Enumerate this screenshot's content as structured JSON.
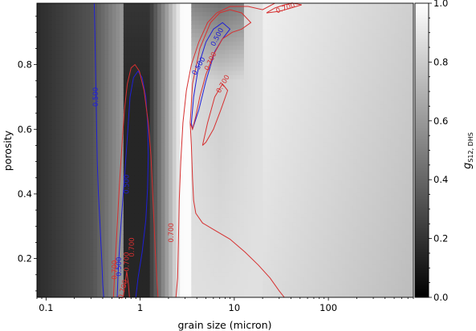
{
  "chart_data": {
    "type": "heatmap",
    "title": "",
    "xlabel": "grain size (micron)",
    "ylabel": "porosity",
    "xscale": "log",
    "xlim": [
      0.08,
      800
    ],
    "ylim": [
      0.08,
      0.99
    ],
    "x_ticks": [
      {
        "value": 0.1,
        "label": "0.1"
      },
      {
        "value": 1,
        "label": "1"
      },
      {
        "value": 10,
        "label": "10"
      },
      {
        "value": 100,
        "label": "100"
      }
    ],
    "y_ticks": [
      {
        "value": 0.2,
        "label": "0.2"
      },
      {
        "value": 0.4,
        "label": "0.4"
      },
      {
        "value": 0.6,
        "label": "0.6"
      },
      {
        "value": 0.8,
        "label": "0.8"
      }
    ],
    "colorbar": {
      "label_main": "g",
      "label_sub": "S12, DHS",
      "range": [
        0,
        1
      ],
      "colormap": "grays",
      "ticks": [
        {
          "value": 0.0,
          "label": "0.0"
        },
        {
          "value": 0.2,
          "label": "0.2"
        },
        {
          "value": 0.4,
          "label": "0.4"
        },
        {
          "value": 0.6,
          "label": "0.6"
        },
        {
          "value": 0.8,
          "label": "0.8"
        },
        {
          "value": 1.0,
          "label": "1.0"
        }
      ]
    },
    "contours": [
      {
        "level": 0.5,
        "label": "0.500",
        "color": "#1f1fd6",
        "paths": [
          [
            [
              0.325,
              0.99
            ],
            [
              0.33,
              0.9
            ],
            [
              0.335,
              0.8
            ],
            [
              0.34,
              0.7
            ],
            [
              0.345,
              0.6
            ],
            [
              0.35,
              0.5
            ],
            [
              0.36,
              0.4
            ],
            [
              0.375,
              0.3
            ],
            [
              0.39,
              0.2
            ],
            [
              0.4,
              0.12
            ],
            [
              0.41,
              0.08
            ]
          ],
          [
            [
              0.9,
              0.08
            ],
            [
              0.95,
              0.14
            ],
            [
              1.05,
              0.22
            ],
            [
              1.15,
              0.32
            ],
            [
              1.2,
              0.42
            ],
            [
              1.22,
              0.52
            ],
            [
              1.2,
              0.62
            ],
            [
              1.15,
              0.7
            ],
            [
              1.05,
              0.76
            ],
            [
              0.95,
              0.78
            ],
            [
              0.85,
              0.76
            ],
            [
              0.78,
              0.7
            ],
            [
              0.74,
              0.6
            ],
            [
              0.7,
              0.5
            ],
            [
              0.66,
              0.4
            ],
            [
              0.63,
              0.32
            ],
            [
              0.6,
              0.22
            ],
            [
              0.58,
              0.14
            ],
            [
              0.57,
              0.08
            ]
          ],
          [
            [
              3.5,
              0.62
            ],
            [
              3.7,
              0.7
            ],
            [
              4.2,
              0.8
            ],
            [
              5,
              0.87
            ],
            [
              6,
              0.91
            ],
            [
              7.5,
              0.93
            ],
            [
              9,
              0.91
            ],
            [
              7.5,
              0.88
            ],
            [
              6.2,
              0.84
            ],
            [
              5,
              0.75
            ],
            [
              4.2,
              0.66
            ],
            [
              3.6,
              0.6
            ],
            [
              3.5,
              0.62
            ]
          ]
        ],
        "labels": [
          {
            "x": 0.34,
            "y": 0.7,
            "rotate": -90
          },
          {
            "x": 0.72,
            "y": 0.43,
            "rotate": -90
          },
          {
            "x": 0.6,
            "y": 0.175,
            "rotate": -90
          },
          {
            "x": 4.2,
            "y": 0.795,
            "rotate": -60
          },
          {
            "x": 6.6,
            "y": 0.885,
            "rotate": -62
          }
        ]
      },
      {
        "level": 0.7,
        "label": "0.700",
        "color": "#d63030",
        "paths": [
          [
            [
              0.52,
              0.08
            ],
            [
              0.54,
              0.17
            ],
            [
              0.57,
              0.3
            ],
            [
              0.6,
              0.42
            ],
            [
              0.64,
              0.55
            ],
            [
              0.68,
              0.66
            ],
            [
              0.73,
              0.74
            ],
            [
              0.8,
              0.79
            ],
            [
              0.88,
              0.8
            ],
            [
              0.98,
              0.78
            ],
            [
              1.1,
              0.72
            ],
            [
              1.22,
              0.62
            ],
            [
              1.3,
              0.52
            ],
            [
              1.35,
              0.42
            ],
            [
              1.4,
              0.32
            ],
            [
              1.45,
              0.22
            ],
            [
              1.5,
              0.14
            ],
            [
              1.55,
              0.08
            ]
          ],
          [
            [
              2.4,
              0.08
            ],
            [
              2.5,
              0.14
            ],
            [
              2.55,
              0.25
            ],
            [
              2.6,
              0.38
            ],
            [
              2.7,
              0.5
            ],
            [
              2.85,
              0.62
            ],
            [
              3.1,
              0.72
            ],
            [
              3.5,
              0.8
            ],
            [
              4.2,
              0.87
            ],
            [
              5.2,
              0.93
            ],
            [
              6.5,
              0.96
            ],
            [
              9,
              0.98
            ],
            [
              14,
              0.98
            ],
            [
              20,
              0.97
            ],
            [
              27,
              0.99
            ]
          ],
          [
            [
              3.4,
              0.62
            ],
            [
              3.5,
              0.55
            ],
            [
              3.6,
              0.45
            ],
            [
              3.7,
              0.38
            ],
            [
              3.9,
              0.34
            ],
            [
              4.6,
              0.31
            ],
            [
              6,
              0.29
            ],
            [
              9,
              0.26
            ],
            [
              13,
              0.22
            ],
            [
              18,
              0.18
            ],
            [
              24,
              0.14
            ],
            [
              30,
              0.1
            ],
            [
              34,
              0.08
            ]
          ],
          [
            [
              3.4,
              0.62
            ],
            [
              3.6,
              0.74
            ],
            [
              4.3,
              0.85
            ],
            [
              5.6,
              0.93
            ],
            [
              7,
              0.96
            ],
            [
              9,
              0.97
            ],
            [
              12,
              0.96
            ],
            [
              15,
              0.93
            ],
            [
              12,
              0.91
            ],
            [
              9.5,
              0.9
            ],
            [
              7.5,
              0.88
            ],
            [
              6,
              0.83
            ],
            [
              5,
              0.77
            ],
            [
              4.3,
              0.7
            ],
            [
              3.9,
              0.64
            ],
            [
              3.6,
              0.6
            ],
            [
              3.4,
              0.62
            ]
          ],
          [
            [
              4.6,
              0.55
            ],
            [
              5.2,
              0.62
            ],
            [
              6.2,
              0.7
            ],
            [
              7.5,
              0.74
            ],
            [
              8.5,
              0.72
            ],
            [
              7.2,
              0.66
            ],
            [
              6,
              0.6
            ],
            [
              5,
              0.56
            ],
            [
              4.6,
              0.55
            ]
          ],
          [
            [
              22,
              0.96
            ],
            [
              27,
              0.975
            ],
            [
              34,
              0.985
            ],
            [
              42,
              0.99
            ],
            [
              52,
              0.985
            ],
            [
              40,
              0.975
            ],
            [
              30,
              0.965
            ],
            [
              22,
              0.96
            ]
          ],
          [
            [
              0.66,
              0.08
            ],
            [
              0.69,
              0.12
            ],
            [
              0.72,
              0.16
            ],
            [
              0.75,
              0.12
            ],
            [
              0.77,
              0.08
            ]
          ]
        ],
        "labels": [
          {
            "x": 0.54,
            "y": 0.165,
            "rotate": -90
          },
          {
            "x": 0.72,
            "y": 0.19,
            "rotate": -90
          },
          {
            "x": 0.82,
            "y": 0.235,
            "rotate": -90
          },
          {
            "x": 0.66,
            "y": 0.105,
            "rotate": -75
          },
          {
            "x": 2.15,
            "y": 0.28,
            "rotate": -90
          },
          {
            "x": 5.6,
            "y": 0.81,
            "rotate": -65
          },
          {
            "x": 7.6,
            "y": 0.74,
            "rotate": -60
          },
          {
            "x": 35,
            "y": 0.975,
            "rotate": -20
          }
        ]
      }
    ]
  }
}
